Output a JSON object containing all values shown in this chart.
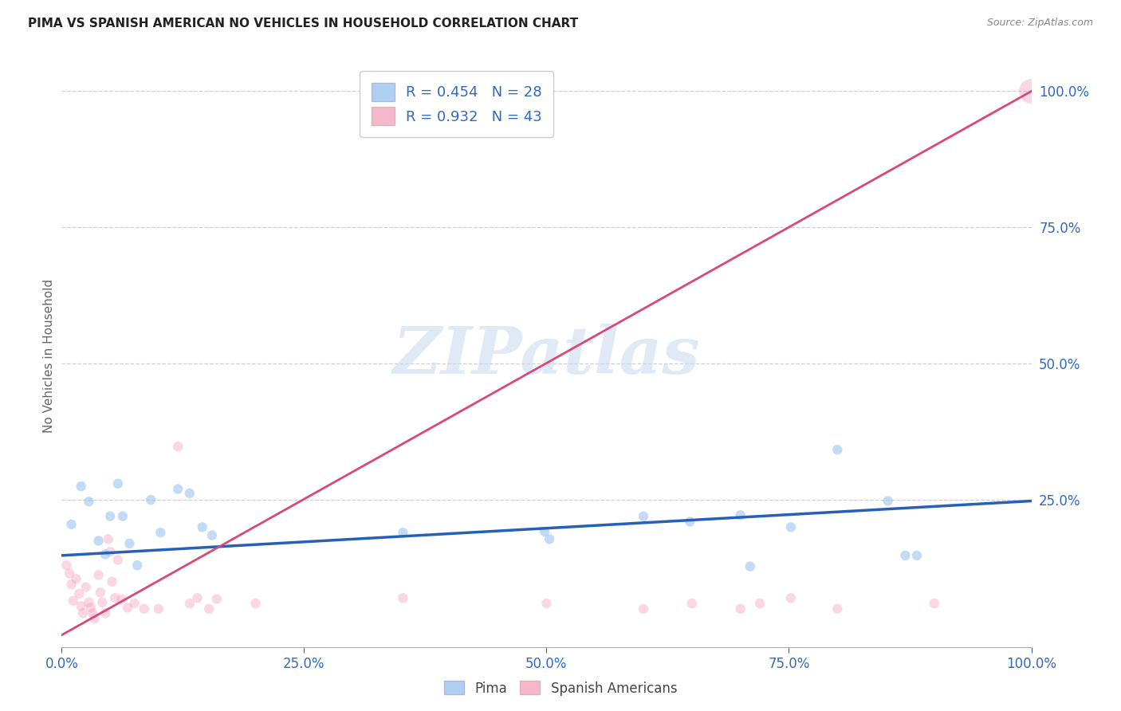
{
  "title": "PIMA VS SPANISH AMERICAN NO VEHICLES IN HOUSEHOLD CORRELATION CHART",
  "source": "Source: ZipAtlas.com",
  "ylabel": "No Vehicles in Household",
  "xlim": [
    0.0,
    1.0
  ],
  "ylim": [
    -0.02,
    1.05
  ],
  "x_ticks": [
    0.0,
    0.25,
    0.5,
    0.75,
    1.0
  ],
  "y_ticks": [
    0.25,
    0.5,
    0.75,
    1.0
  ],
  "x_tick_labels": [
    "0.0%",
    "25.0%",
    "50.0%",
    "75.0%",
    "100.0%"
  ],
  "y_tick_labels": [
    "25.0%",
    "50.0%",
    "75.0%",
    "100.0%"
  ],
  "watermark_text": "ZIPatlas",
  "legend_pima_R": 0.454,
  "legend_pima_N": 28,
  "legend_spanish_R": 0.932,
  "legend_spanish_N": 43,
  "pima_color": "#92BFED",
  "spanish_color": "#F4A0BC",
  "pima_line_color": "#2660b8",
  "spanish_line_color": "#d84878",
  "tick_color": "#3068c0",
  "background_color": "#ffffff",
  "grid_color": "#d0d0d0",
  "pima_line": [
    0.0,
    0.148,
    1.0,
    0.248
  ],
  "spanish_line": [
    -0.03,
    -0.028,
    1.0,
    1.0
  ],
  "pima_points": [
    [
      0.01,
      0.205
    ],
    [
      0.02,
      0.275
    ],
    [
      0.028,
      0.247
    ],
    [
      0.038,
      0.175
    ],
    [
      0.045,
      0.15
    ],
    [
      0.05,
      0.22
    ],
    [
      0.058,
      0.28
    ],
    [
      0.063,
      0.22
    ],
    [
      0.07,
      0.17
    ],
    [
      0.078,
      0.13
    ],
    [
      0.092,
      0.25
    ],
    [
      0.102,
      0.19
    ],
    [
      0.12,
      0.27
    ],
    [
      0.132,
      0.262
    ],
    [
      0.145,
      0.2
    ],
    [
      0.155,
      0.185
    ],
    [
      0.352,
      0.19
    ],
    [
      0.498,
      0.192
    ],
    [
      0.503,
      0.178
    ],
    [
      0.6,
      0.22
    ],
    [
      0.648,
      0.21
    ],
    [
      0.7,
      0.222
    ],
    [
      0.71,
      0.128
    ],
    [
      0.752,
      0.2
    ],
    [
      0.8,
      0.342
    ],
    [
      0.852,
      0.248
    ],
    [
      0.87,
      0.148
    ],
    [
      0.882,
      0.148
    ]
  ],
  "spanish_points": [
    [
      0.005,
      0.13
    ],
    [
      0.008,
      0.115
    ],
    [
      0.01,
      0.095
    ],
    [
      0.012,
      0.065
    ],
    [
      0.015,
      0.105
    ],
    [
      0.018,
      0.078
    ],
    [
      0.02,
      0.055
    ],
    [
      0.022,
      0.042
    ],
    [
      0.025,
      0.09
    ],
    [
      0.028,
      0.062
    ],
    [
      0.03,
      0.052
    ],
    [
      0.032,
      0.042
    ],
    [
      0.034,
      0.032
    ],
    [
      0.038,
      0.112
    ],
    [
      0.04,
      0.08
    ],
    [
      0.042,
      0.062
    ],
    [
      0.045,
      0.042
    ],
    [
      0.048,
      0.178
    ],
    [
      0.05,
      0.155
    ],
    [
      0.052,
      0.1
    ],
    [
      0.055,
      0.07
    ],
    [
      0.058,
      0.14
    ],
    [
      0.062,
      0.068
    ],
    [
      0.068,
      0.052
    ],
    [
      0.075,
      0.06
    ],
    [
      0.085,
      0.05
    ],
    [
      0.1,
      0.05
    ],
    [
      0.12,
      0.348
    ],
    [
      0.132,
      0.06
    ],
    [
      0.14,
      0.07
    ],
    [
      0.152,
      0.05
    ],
    [
      0.16,
      0.068
    ],
    [
      0.2,
      0.06
    ],
    [
      0.352,
      0.07
    ],
    [
      0.5,
      0.06
    ],
    [
      0.6,
      0.05
    ],
    [
      0.65,
      0.06
    ],
    [
      0.7,
      0.05
    ],
    [
      0.72,
      0.06
    ],
    [
      0.752,
      0.07
    ],
    [
      0.8,
      0.05
    ],
    [
      0.9,
      0.06
    ],
    [
      1.0,
      1.0
    ]
  ],
  "pima_marker_size": 80,
  "spanish_marker_size": 80,
  "spanish_last_marker_size": 500
}
